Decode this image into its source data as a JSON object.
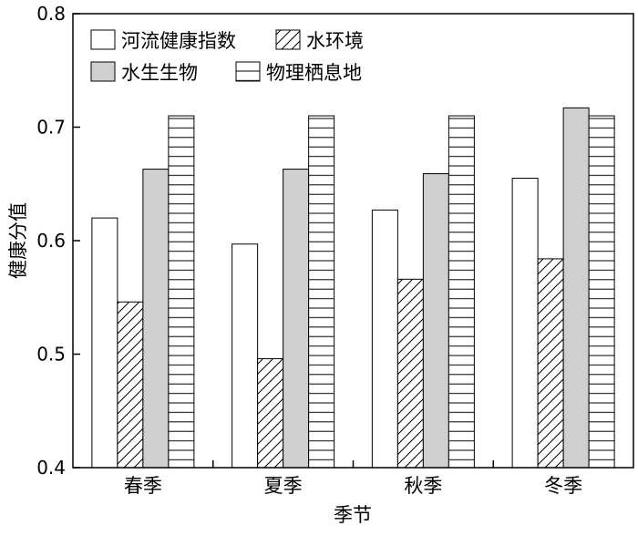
{
  "chart_data": {
    "type": "bar",
    "xlabel": "季节",
    "ylabel": "健康分值",
    "ylim": [
      0.4,
      0.8
    ],
    "yticks": [
      0.4,
      0.5,
      0.6,
      0.7,
      0.8
    ],
    "ytick_labels": [
      "0.4",
      "0.5",
      "0.6",
      "0.7",
      "0.8"
    ],
    "categories": [
      "春季",
      "夏季",
      "秋季",
      "冬季"
    ],
    "series": [
      {
        "name": "河流健康指数",
        "pattern": "solid-white",
        "values": [
          0.62,
          0.597,
          0.627,
          0.655
        ]
      },
      {
        "name": "水环境",
        "pattern": "diagonal-hatch",
        "values": [
          0.546,
          0.496,
          0.566,
          0.584
        ]
      },
      {
        "name": "水生生物",
        "pattern": "solid-gray",
        "values": [
          0.663,
          0.663,
          0.659,
          0.717
        ]
      },
      {
        "name": "物理栖息地",
        "pattern": "horizontal-hatch",
        "values": [
          0.71,
          0.71,
          0.71,
          0.71
        ]
      }
    ],
    "legend_position": "top-left",
    "grid": false,
    "colors": {
      "gray_fill": "#cfcfcf",
      "outline": "#000000",
      "background": "#ffffff"
    }
  }
}
